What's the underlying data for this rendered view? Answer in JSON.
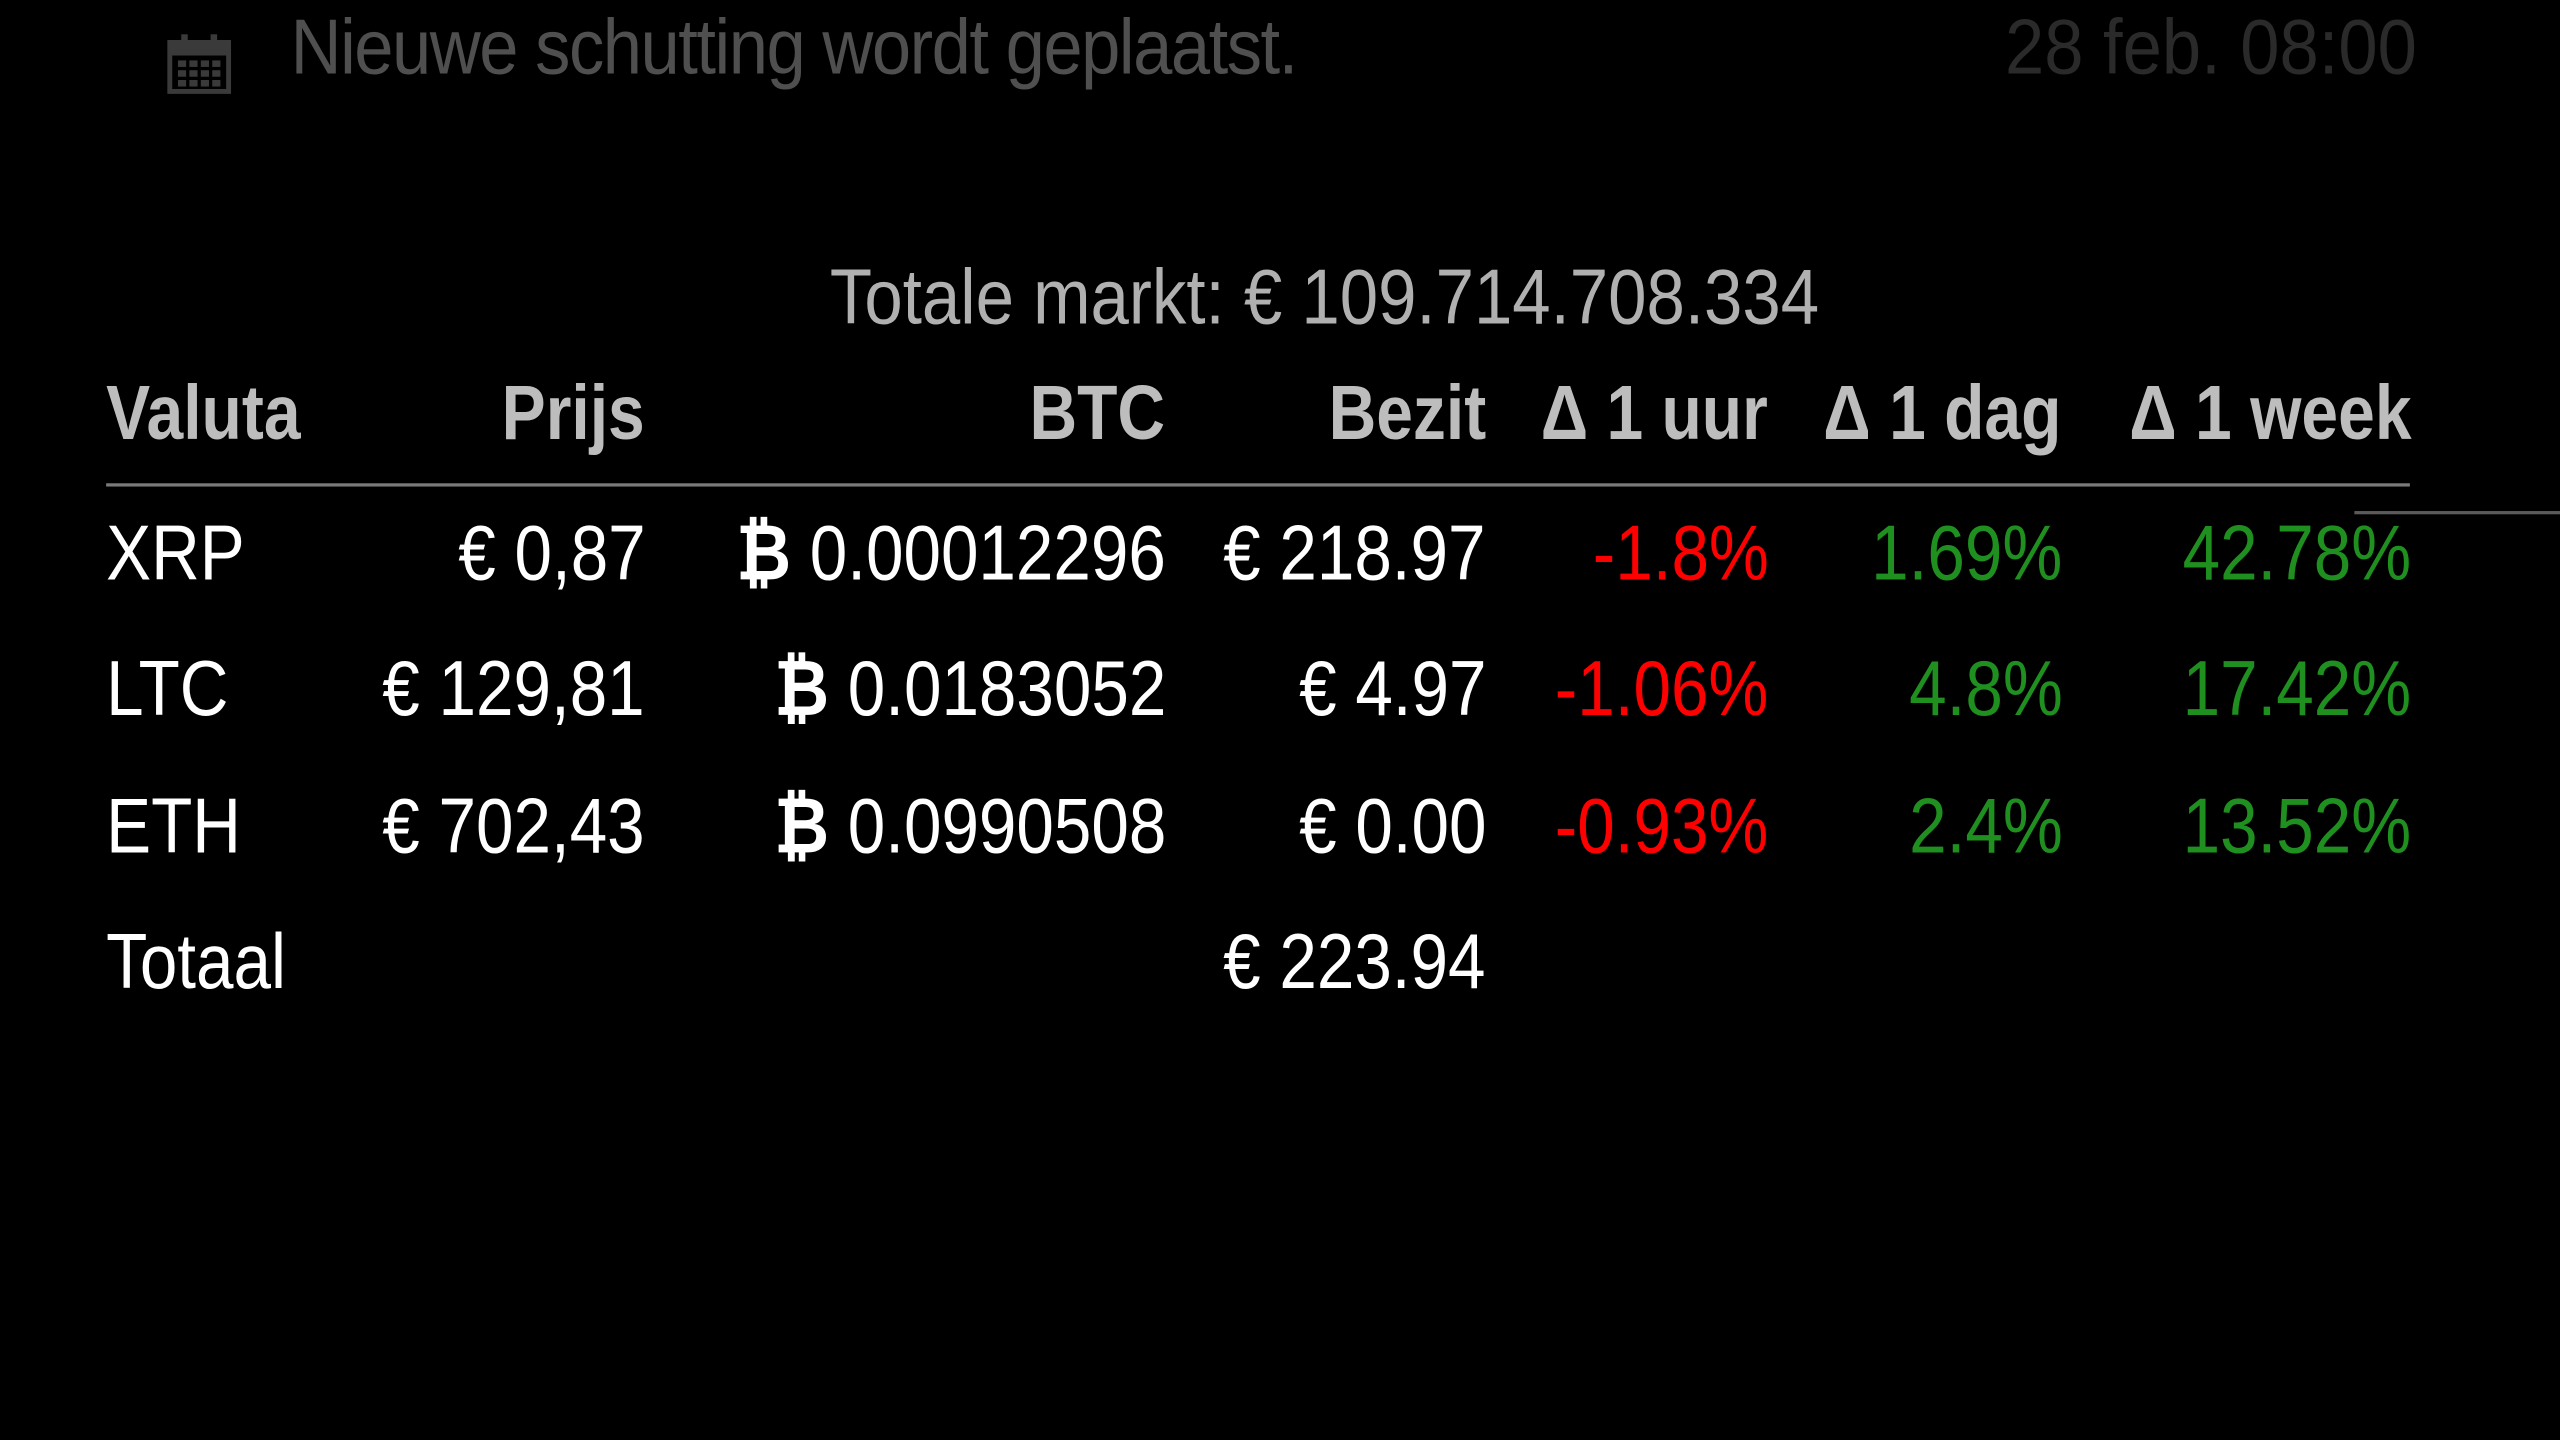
{
  "event": {
    "icon": "calendar-icon",
    "title": "Nieuwe schutting wordt geplaatst.",
    "time": "28 feb. 08:00"
  },
  "market": {
    "total_label": "Totale markt: € 109.714.708.334"
  },
  "table": {
    "headers": {
      "valuta": "Valuta",
      "prijs": "Prijs",
      "btc": "BTC",
      "bezit": "Bezit",
      "delta_hour": "Δ 1 uur",
      "delta_day": "Δ 1 dag",
      "delta_week": "Δ 1 week"
    },
    "rows": [
      {
        "valuta": "XRP",
        "prijs": "€ 0,87",
        "btc_symbol": "₿",
        "btc": "0.00012296",
        "bezit": "€ 218.97",
        "delta_hour": "-1.8%",
        "delta_day": "1.69%",
        "delta_week": "42.78%"
      },
      {
        "valuta": "LTC",
        "prijs": "€ 129,81",
        "btc_symbol": "₿",
        "btc": "0.0183052",
        "bezit": "€ 4.97",
        "delta_hour": "-1.06%",
        "delta_day": "4.8%",
        "delta_week": "17.42%"
      },
      {
        "valuta": "ETH",
        "prijs": "€ 702,43",
        "btc_symbol": "₿",
        "btc": "0.0990508",
        "bezit": "€ 0.00",
        "delta_hour": "-0.93%",
        "delta_day": "2.4%",
        "delta_week": "13.52%"
      }
    ],
    "total": {
      "label": "Totaal",
      "bezit": "€ 223.94"
    }
  },
  "colors": {
    "background": "#000000",
    "negative": "#ff0000",
    "positive": "#1f8f1f",
    "header": "#bdbdbd",
    "dimmed": "#4f4f4f"
  }
}
